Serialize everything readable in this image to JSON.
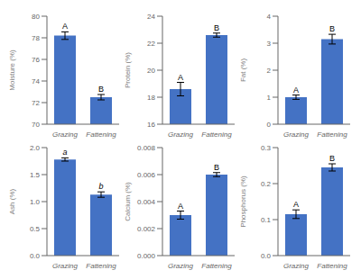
{
  "chart_data": [
    {
      "type": "bar",
      "ylabel": "Moisture (%)",
      "categories": [
        "Grazing",
        "Fattening"
      ],
      "values": [
        78.2,
        72.5
      ],
      "errors": [
        0.35,
        0.25
      ],
      "labels": [
        "A",
        "B"
      ],
      "color": "#4472C4",
      "ylim": [
        70,
        80
      ],
      "yticks": [
        70,
        72,
        74,
        76,
        78,
        80
      ]
    },
    {
      "type": "bar",
      "ylabel": "Protein (%)",
      "categories": [
        "Grazing",
        "Fattening"
      ],
      "values": [
        18.6,
        22.6
      ],
      "errors": [
        0.5,
        0.15
      ],
      "labels": [
        "A",
        "B"
      ],
      "color": "#4472C4",
      "ylim": [
        16,
        24
      ],
      "yticks": [
        16,
        18,
        20,
        22,
        24
      ]
    },
    {
      "type": "bar",
      "ylabel": "Fat (%)",
      "categories": [
        "Grazing",
        "Fattening"
      ],
      "values": [
        1.0,
        3.15
      ],
      "errors": [
        0.08,
        0.18
      ],
      "labels": [
        "A",
        "B"
      ],
      "color": "#4472C4",
      "ylim": [
        0,
        4
      ],
      "yticks": [
        0,
        1,
        2,
        3,
        4
      ]
    },
    {
      "type": "bar",
      "ylabel": "Ash (%)",
      "categories": [
        "Grazing",
        "Fattening"
      ],
      "values": [
        1.78,
        1.13
      ],
      "errors": [
        0.03,
        0.05
      ],
      "labels": [
        "a",
        "b"
      ],
      "color": "#4472C4",
      "ylim": [
        0,
        2
      ],
      "yticks": [
        {
          "value": 0,
          "label": "0.0"
        },
        0.5,
        {
          "value": 1.0,
          "label": "1.0"
        },
        1.5,
        {
          "value": 2.0,
          "label": "2.0"
        }
      ]
    },
    {
      "type": "bar",
      "ylabel": "Calcium (%)",
      "categories": [
        "Grazing",
        "Fattening"
      ],
      "values": [
        0.003,
        0.006
      ],
      "errors": [
        0.0003,
        0.00015
      ],
      "labels": [
        "A",
        "B"
      ],
      "color": "#4472C4",
      "ylim": [
        0,
        0.008
      ],
      "yticks": [
        {
          "value": 0,
          "label": "0.000"
        },
        {
          "value": 0.002,
          "label": "0.002"
        },
        {
          "value": 0.004,
          "label": "0.004"
        },
        {
          "value": 0.006,
          "label": "0.006"
        },
        {
          "value": 0.008,
          "label": "0.008"
        }
      ]
    },
    {
      "type": "bar",
      "ylabel": "Phosphorus (%)",
      "categories": [
        "Grazing",
        "Fattening"
      ],
      "values": [
        0.115,
        0.245
      ],
      "errors": [
        0.012,
        0.01
      ],
      "labels": [
        "A",
        "B"
      ],
      "color": "#4472C4",
      "ylim": [
        0,
        0.3
      ],
      "yticks": [
        {
          "value": 0,
          "label": "0.0"
        },
        0.1,
        0.2,
        0.3
      ]
    }
  ]
}
